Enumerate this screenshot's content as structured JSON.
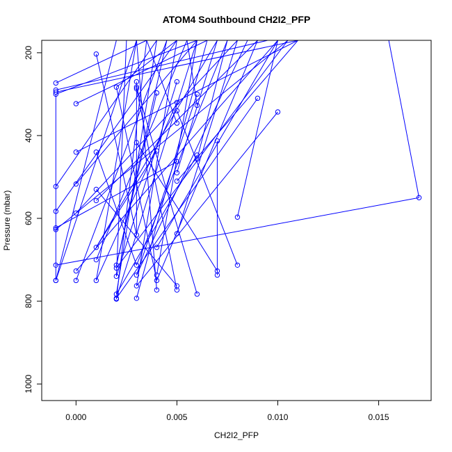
{
  "chart_data": {
    "type": "line",
    "title": "ATOM4 Southbound CH2I2_PFP",
    "xlabel": "CH2I2_PFP",
    "ylabel": "Pressure (mbar)",
    "xlim": [
      -0.0017,
      0.0176
    ],
    "ylim": [
      1040,
      170
    ],
    "y_reversed": true,
    "x_ticks": [
      0.0,
      0.005,
      0.01,
      0.015
    ],
    "x_tick_labels": [
      "0.000",
      "0.005",
      "0.010",
      "0.015"
    ],
    "y_ticks": [
      200,
      400,
      600,
      800,
      1000
    ],
    "y_tick_labels": [
      "200",
      "400",
      "600",
      "800",
      "1000"
    ],
    "grid": false,
    "series": [
      {
        "color": "#0000ff",
        "marker": "open-circle",
        "points": [
          [
            -0.001,
            273
          ],
          [
            -0.001,
            290
          ],
          [
            -0.001,
            295
          ],
          [
            -0.001,
            300
          ],
          [
            -0.001,
            523
          ],
          [
            -0.001,
            583
          ],
          [
            -0.001,
            623
          ],
          [
            -0.001,
            627
          ],
          [
            -0.001,
            713
          ],
          [
            -0.001,
            750
          ],
          [
            -0.001,
            750
          ],
          [
            0.0,
            323
          ],
          [
            0.0,
            440
          ],
          [
            0.0,
            517
          ],
          [
            0.0,
            587
          ],
          [
            0.0,
            727
          ],
          [
            0.0,
            750
          ],
          [
            0.001,
            203
          ],
          [
            0.001,
            440
          ],
          [
            0.001,
            530
          ],
          [
            0.001,
            557
          ],
          [
            0.001,
            670
          ],
          [
            0.001,
            700
          ],
          [
            0.001,
            750
          ],
          [
            0.002,
            283
          ],
          [
            0.002,
            713
          ],
          [
            0.002,
            720
          ],
          [
            0.002,
            740
          ],
          [
            0.002,
            783
          ],
          [
            0.002,
            793
          ],
          [
            0.002,
            795
          ],
          [
            0.003,
            270
          ],
          [
            0.003,
            283
          ],
          [
            0.003,
            287
          ],
          [
            0.003,
            417
          ],
          [
            0.003,
            640
          ],
          [
            0.003,
            713
          ],
          [
            0.003,
            737
          ],
          [
            0.003,
            763
          ],
          [
            0.003,
            793
          ],
          [
            0.004,
            297
          ],
          [
            0.004,
            437
          ],
          [
            0.004,
            670
          ],
          [
            0.004,
            737
          ],
          [
            0.004,
            750
          ],
          [
            0.004,
            773
          ],
          [
            0.005,
            270
          ],
          [
            0.005,
            320
          ],
          [
            0.005,
            340
          ],
          [
            0.005,
            370
          ],
          [
            0.005,
            463
          ],
          [
            0.005,
            490
          ],
          [
            0.005,
            510
          ],
          [
            0.005,
            637
          ],
          [
            0.005,
            763
          ],
          [
            0.005,
            773
          ],
          [
            0.006,
            300
          ],
          [
            0.006,
            327
          ],
          [
            0.006,
            447
          ],
          [
            0.006,
            457
          ],
          [
            0.006,
            783
          ],
          [
            0.007,
            413
          ],
          [
            0.007,
            727
          ],
          [
            0.007,
            737
          ],
          [
            0.008,
            597
          ],
          [
            0.008,
            713
          ],
          [
            0.009,
            310
          ],
          [
            0.01,
            343
          ],
          [
            0.017,
            550
          ]
        ],
        "segments": [
          [
            [
              -0.001,
              273
            ],
            [
              0.0035,
              170
            ]
          ],
          [
            [
              -0.001,
              290
            ],
            [
              0.0095,
              170
            ]
          ],
          [
            [
              -0.001,
              295
            ],
            [
              0.011,
              170
            ]
          ],
          [
            [
              -0.001,
              300
            ],
            [
              0.006,
              170
            ]
          ],
          [
            [
              -0.001,
              523
            ],
            [
              0.004,
              170
            ]
          ],
          [
            [
              -0.001,
              583
            ],
            [
              0.005,
              170
            ]
          ],
          [
            [
              -0.001,
              627
            ],
            [
              0.0105,
              170
            ]
          ],
          [
            [
              -0.001,
              750
            ],
            [
              0.003,
              170
            ]
          ],
          [
            [
              -0.001,
              750
            ],
            [
              0.002,
              170
            ]
          ],
          [
            [
              -0.001,
              623
            ],
            [
              0.005,
              463
            ]
          ],
          [
            [
              -0.001,
              300
            ],
            [
              -0.001,
              750
            ]
          ],
          [
            [
              0.0,
              323
            ],
            [
              0.0065,
              170
            ]
          ],
          [
            [
              0.0,
              440
            ],
            [
              0.011,
              170
            ]
          ],
          [
            [
              0.0,
              517
            ],
            [
              0.006,
              170
            ]
          ],
          [
            [
              0.0,
              587
            ],
            [
              0.008,
              170
            ]
          ],
          [
            [
              0.0,
              727
            ],
            [
              0.01,
              170
            ]
          ],
          [
            [
              0.0,
              750
            ],
            [
              0.0045,
              170
            ]
          ],
          [
            [
              0.001,
              203
            ],
            [
              0.003,
              640
            ]
          ],
          [
            [
              0.001,
              440
            ],
            [
              0.003,
              713
            ]
          ],
          [
            [
              0.001,
              530
            ],
            [
              0.005,
              763
            ]
          ],
          [
            [
              0.001,
              557
            ],
            [
              0.009,
              170
            ]
          ],
          [
            [
              0.001,
              670
            ],
            [
              0.007,
              170
            ]
          ],
          [
            [
              0.001,
              700
            ],
            [
              0.0055,
              170
            ]
          ],
          [
            [
              0.001,
              750
            ],
            [
              0.003,
              170
            ]
          ],
          [
            [
              0.002,
              283
            ],
            [
              0.004,
              750
            ]
          ],
          [
            [
              0.002,
              713
            ],
            [
              0.0045,
              170
            ]
          ],
          [
            [
              0.002,
              720
            ],
            [
              0.0105,
              170
            ]
          ],
          [
            [
              0.002,
              740
            ],
            [
              0.0025,
              170
            ]
          ],
          [
            [
              0.002,
              783
            ],
            [
              0.004,
              170
            ]
          ],
          [
            [
              0.002,
              793
            ],
            [
              0.006,
              170
            ]
          ],
          [
            [
              0.002,
              795
            ],
            [
              0.0035,
              170
            ]
          ],
          [
            [
              0.003,
              270
            ],
            [
              0.003,
              640
            ]
          ],
          [
            [
              0.003,
              283
            ],
            [
              0.006,
              783
            ]
          ],
          [
            [
              0.003,
              287
            ],
            [
              0.005,
              773
            ]
          ],
          [
            [
              0.003,
              417
            ],
            [
              0.007,
              727
            ]
          ],
          [
            [
              0.003,
              713
            ],
            [
              0.0075,
              170
            ]
          ],
          [
            [
              0.003,
              737
            ],
            [
              0.0085,
              170
            ]
          ],
          [
            [
              0.003,
              763
            ],
            [
              0.005,
              170
            ]
          ],
          [
            [
              0.003,
              793
            ],
            [
              0.0065,
              170
            ]
          ],
          [
            [
              0.004,
              297
            ],
            [
              0.002,
              713
            ]
          ],
          [
            [
              0.004,
              437
            ],
            [
              0.001,
              670
            ]
          ],
          [
            [
              0.004,
              670
            ],
            [
              0.01,
              170
            ]
          ],
          [
            [
              0.004,
              737
            ],
            [
              0.006,
              170
            ]
          ],
          [
            [
              0.004,
              773
            ],
            [
              0.003,
              170
            ]
          ],
          [
            [
              0.005,
              270
            ],
            [
              0.002,
              740
            ]
          ],
          [
            [
              0.005,
              320
            ],
            [
              0.001,
              750
            ]
          ],
          [
            [
              0.005,
              340
            ],
            [
              0.008,
              713
            ]
          ],
          [
            [
              0.005,
              370
            ],
            [
              0.0035,
              170
            ]
          ],
          [
            [
              0.005,
              490
            ],
            [
              0.007,
              170
            ]
          ],
          [
            [
              0.005,
              510
            ],
            [
              0.011,
              170
            ]
          ],
          [
            [
              0.005,
              637
            ],
            [
              0.008,
              170
            ]
          ],
          [
            [
              0.006,
              300
            ],
            [
              0.003,
              737
            ]
          ],
          [
            [
              0.006,
              327
            ],
            [
              0.0055,
              170
            ]
          ],
          [
            [
              0.006,
              447
            ],
            [
              0.002,
              783
            ]
          ],
          [
            [
              0.006,
              457
            ],
            [
              0.0075,
              170
            ]
          ],
          [
            [
              0.007,
              413
            ],
            [
              0.007,
              737
            ]
          ],
          [
            [
              0.008,
              597
            ],
            [
              0.01,
              170
            ]
          ],
          [
            [
              0.009,
              310
            ],
            [
              0.002,
              793
            ]
          ],
          [
            [
              0.01,
              343
            ],
            [
              0.003,
              763
            ]
          ],
          [
            [
              0.017,
              550
            ],
            [
              -0.001,
              713
            ]
          ],
          [
            [
              0.017,
              550
            ],
            [
              0.0155,
              170
            ]
          ],
          [
            [
              0.004,
              750
            ],
            [
              0.009,
              170
            ]
          ],
          [
            [
              0.002,
              283
            ],
            [
              0.005,
              170
            ]
          ]
        ]
      }
    ]
  }
}
